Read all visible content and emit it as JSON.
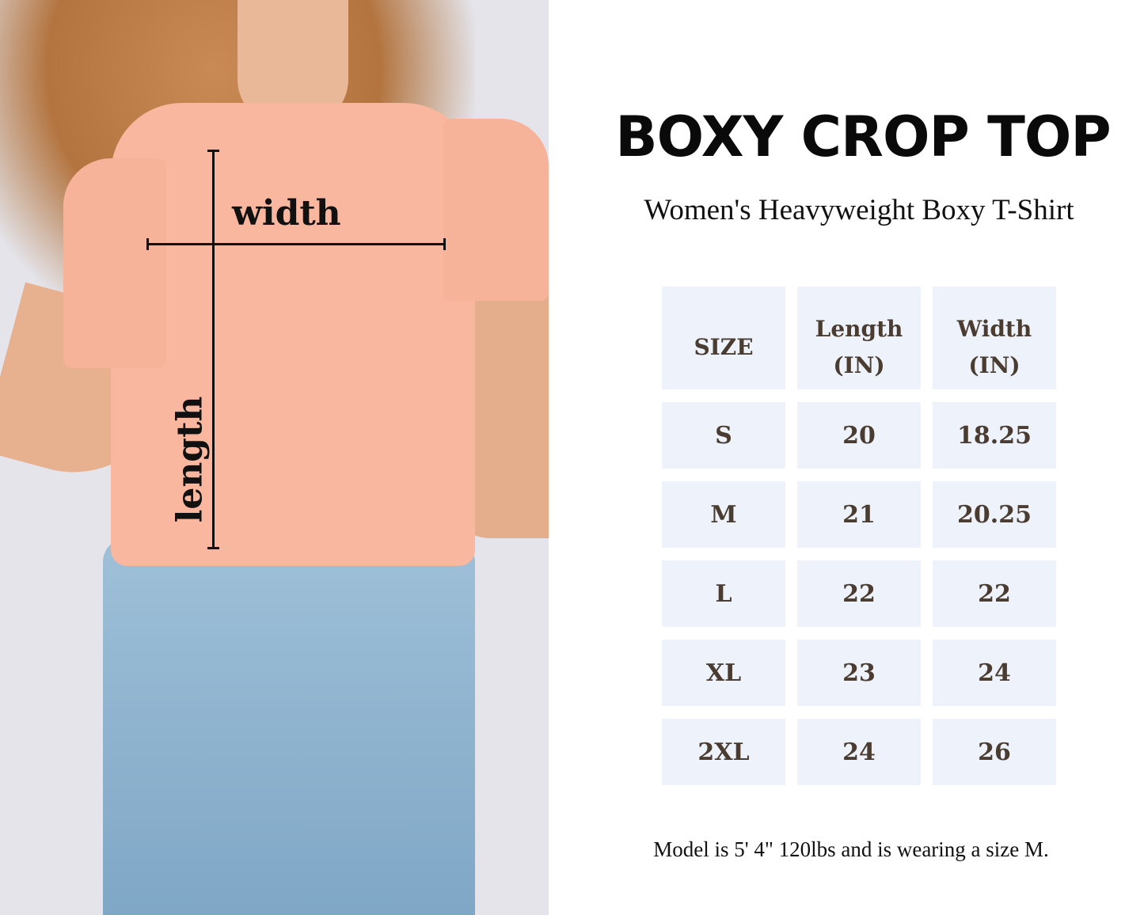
{
  "title": "BOXY CROP TOP",
  "subtitle": "Women's Heavyweight Boxy T-Shirt",
  "photo": {
    "width_label": "width",
    "length_label": "length"
  },
  "table": {
    "headers": [
      {
        "line1": "SIZE",
        "line2": ""
      },
      {
        "line1": "Length",
        "line2": "(IN)"
      },
      {
        "line1": "Width",
        "line2": "(IN)"
      }
    ],
    "rows": [
      [
        "S",
        "20",
        "18.25"
      ],
      [
        "M",
        "21",
        "20.25"
      ],
      [
        "L",
        "22",
        "22"
      ],
      [
        "XL",
        "23",
        "24"
      ],
      [
        "2XL",
        "24",
        "26"
      ]
    ]
  },
  "note": "Model is 5' 4\" 120lbs and is wearing a size M.",
  "colors": {
    "cell_bg": "#edf2fb",
    "cell_text": "#4a3c30",
    "shirt": "#f8b79e",
    "jeans": "#8fb3cf"
  }
}
